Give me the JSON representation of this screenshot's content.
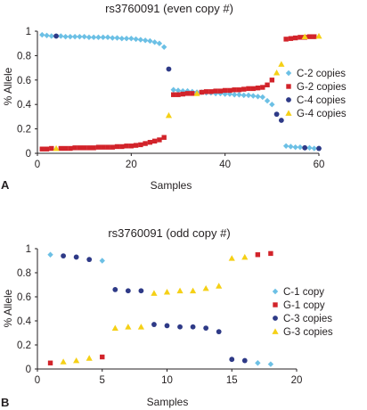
{
  "chart_data": [
    {
      "panel_label": "A",
      "type": "scatter",
      "title": "rs3760091 (even copy #)",
      "xlabel": "Samples",
      "ylabel": "% Allele",
      "xlim": [
        0,
        60
      ],
      "ylim": [
        0,
        1
      ],
      "xticks": [
        "0",
        "20",
        "40",
        "60"
      ],
      "yticks": [
        "0",
        "0.2",
        "0.4",
        "0.6",
        "0.8",
        "1"
      ],
      "legend_position": "right",
      "series": [
        {
          "name": "C-2 copies",
          "marker": "diamond",
          "color": "#6cc0e5",
          "x": [
            1,
            2,
            3,
            4,
            5,
            6,
            7,
            8,
            9,
            10,
            11,
            12,
            13,
            14,
            15,
            16,
            17,
            18,
            19,
            20,
            21,
            22,
            23,
            24,
            25,
            26,
            27,
            29,
            30,
            31,
            32,
            33,
            34,
            35,
            36,
            37,
            38,
            39,
            40,
            41,
            42,
            43,
            44,
            45,
            46,
            47,
            48,
            49,
            50,
            53,
            54,
            55,
            56,
            57,
            58,
            59,
            60
          ],
          "y": [
            0.97,
            0.965,
            0.96,
            0.96,
            0.96,
            0.955,
            0.955,
            0.955,
            0.955,
            0.955,
            0.95,
            0.95,
            0.95,
            0.95,
            0.95,
            0.945,
            0.945,
            0.94,
            0.94,
            0.94,
            0.935,
            0.93,
            0.925,
            0.92,
            0.91,
            0.9,
            0.87,
            0.52,
            0.515,
            0.51,
            0.51,
            0.505,
            0.5,
            0.5,
            0.495,
            0.495,
            0.49,
            0.49,
            0.485,
            0.485,
            0.48,
            0.48,
            0.475,
            0.475,
            0.47,
            0.465,
            0.46,
            0.43,
            0.4,
            0.06,
            0.055,
            0.05,
            0.05,
            0.045,
            0.045,
            0.04,
            0.04
          ]
        },
        {
          "name": "G-2 copies",
          "marker": "square",
          "color": "#d2232a",
          "x": [
            1,
            2,
            3,
            5,
            6,
            7,
            8,
            9,
            10,
            11,
            12,
            13,
            14,
            15,
            16,
            17,
            18,
            19,
            20,
            21,
            22,
            23,
            24,
            25,
            26,
            27,
            29,
            30,
            31,
            32,
            33,
            35,
            36,
            37,
            38,
            39,
            40,
            41,
            42,
            43,
            44,
            45,
            46,
            47,
            48,
            49,
            50,
            53,
            54,
            55,
            56,
            57,
            58,
            59
          ],
          "y": [
            0.035,
            0.035,
            0.04,
            0.04,
            0.04,
            0.04,
            0.045,
            0.045,
            0.045,
            0.045,
            0.045,
            0.05,
            0.05,
            0.05,
            0.05,
            0.055,
            0.055,
            0.06,
            0.06,
            0.065,
            0.07,
            0.08,
            0.09,
            0.1,
            0.11,
            0.13,
            0.48,
            0.48,
            0.485,
            0.49,
            0.49,
            0.5,
            0.505,
            0.505,
            0.51,
            0.51,
            0.515,
            0.515,
            0.52,
            0.52,
            0.525,
            0.53,
            0.53,
            0.535,
            0.54,
            0.56,
            0.6,
            0.935,
            0.94,
            0.945,
            0.95,
            0.95,
            0.955,
            0.955
          ]
        },
        {
          "name": "C-4 copies",
          "marker": "circle",
          "color": "#2e3a87",
          "x": [
            4,
            28,
            51,
            52,
            57,
            60
          ],
          "y": [
            0.96,
            0.69,
            0.32,
            0.27,
            0.045,
            0.04
          ]
        },
        {
          "name": "G-4 copies",
          "marker": "triangle",
          "color": "#f5d016",
          "x": [
            4,
            28,
            34,
            51,
            52,
            57,
            60
          ],
          "y": [
            0.04,
            0.31,
            0.49,
            0.66,
            0.73,
            0.955,
            0.96
          ]
        }
      ]
    },
    {
      "panel_label": "B",
      "type": "scatter",
      "title": "rs3760091 (odd copy #)",
      "xlabel": "Samples",
      "ylabel": "% Allele",
      "xlim": [
        0,
        20
      ],
      "ylim": [
        0,
        1
      ],
      "xticks": [
        "0",
        "5",
        "10",
        "15",
        "20"
      ],
      "yticks": [
        "0",
        "0.2",
        "0.4",
        "0.6",
        "0.8",
        "1"
      ],
      "legend_position": "right",
      "series": [
        {
          "name": "C-1 copy",
          "marker": "diamond",
          "color": "#6cc0e5",
          "x": [
            1,
            5,
            17,
            18
          ],
          "y": [
            0.95,
            0.9,
            0.05,
            0.04
          ]
        },
        {
          "name": "G-1 copy",
          "marker": "square",
          "color": "#d2232a",
          "x": [
            1,
            5,
            17,
            18
          ],
          "y": [
            0.05,
            0.1,
            0.95,
            0.96
          ]
        },
        {
          "name": "C-3 copies",
          "marker": "circle",
          "color": "#2e3a87",
          "x": [
            2,
            3,
            4,
            6,
            7,
            8,
            9,
            10,
            11,
            12,
            13,
            14,
            15,
            16
          ],
          "y": [
            0.94,
            0.93,
            0.91,
            0.66,
            0.65,
            0.65,
            0.37,
            0.36,
            0.35,
            0.35,
            0.34,
            0.31,
            0.08,
            0.07
          ]
        },
        {
          "name": "G-3 copies",
          "marker": "triangle",
          "color": "#f5d016",
          "x": [
            2,
            3,
            4,
            6,
            7,
            8,
            9,
            10,
            11,
            12,
            13,
            14,
            15,
            16
          ],
          "y": [
            0.06,
            0.07,
            0.09,
            0.34,
            0.35,
            0.35,
            0.63,
            0.64,
            0.65,
            0.65,
            0.67,
            0.69,
            0.92,
            0.93
          ]
        }
      ]
    }
  ]
}
